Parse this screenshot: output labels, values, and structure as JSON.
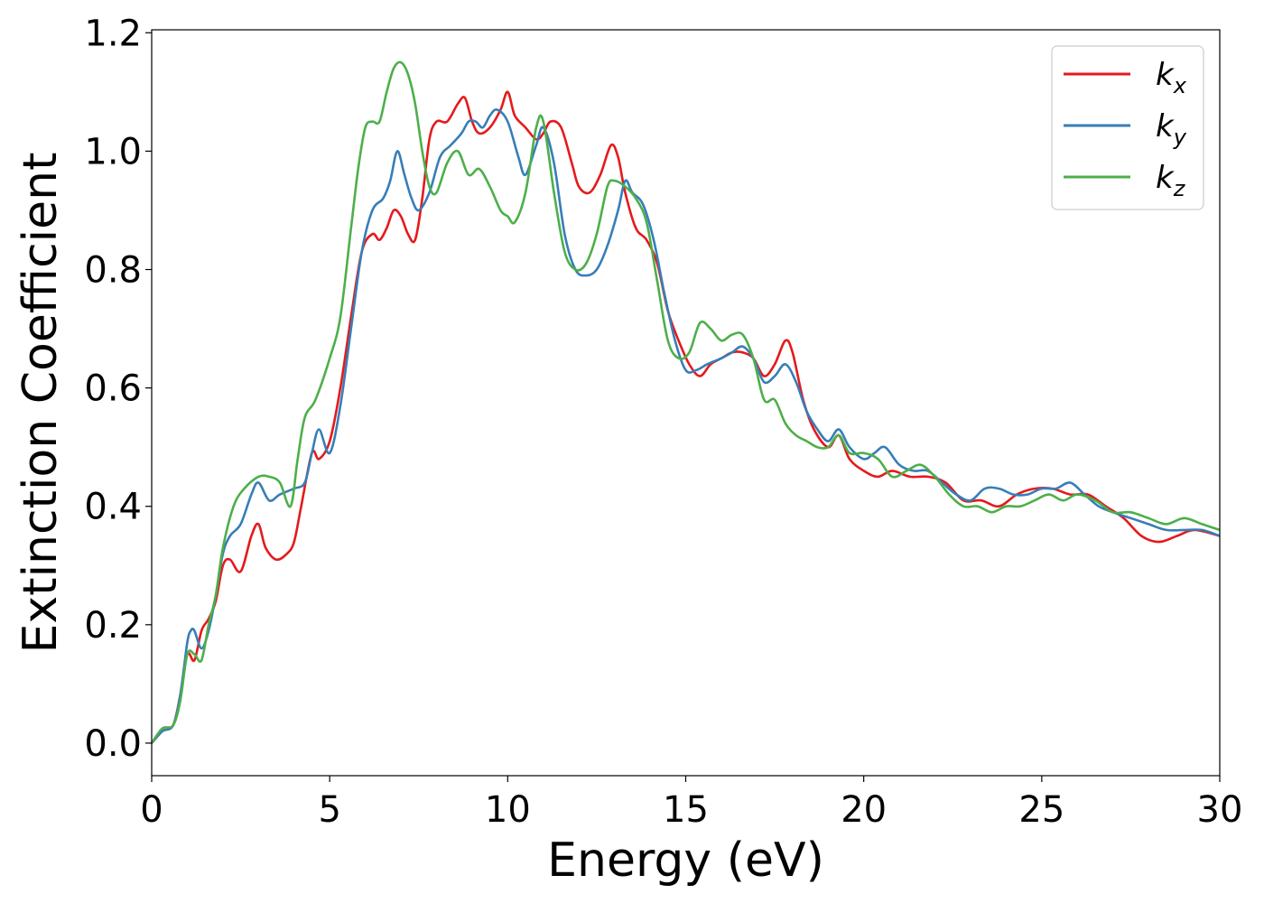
{
  "chart_data": {
    "type": "line",
    "title": "",
    "xlabel": "Energy (eV)",
    "ylabel": "Extinction Coefficient",
    "xlim": [
      0,
      30
    ],
    "ylim": [
      -0.055,
      1.205
    ],
    "xticks": [
      0,
      5,
      10,
      15,
      20,
      25,
      30
    ],
    "xtick_labels": [
      "0",
      "5",
      "10",
      "15",
      "20",
      "25",
      "30"
    ],
    "yticks": [
      0.0,
      0.2,
      0.4,
      0.6,
      0.8,
      1.0,
      1.2
    ],
    "ytick_labels": [
      "0.0",
      "0.2",
      "0.4",
      "0.6",
      "0.8",
      "1.0",
      "1.2"
    ],
    "grid": false,
    "legend_position": "top-right",
    "series": [
      {
        "name": "k",
        "subscript": "x",
        "color": "#e41a1c",
        "x": [
          0,
          0.3,
          0.6,
          0.8,
          1.0,
          1.2,
          1.4,
          1.6,
          1.8,
          2.0,
          2.2,
          2.5,
          2.8,
          3.0,
          3.2,
          3.5,
          3.8,
          4.0,
          4.2,
          4.5,
          4.7,
          5.0,
          5.3,
          5.6,
          5.9,
          6.2,
          6.4,
          6.6,
          6.8,
          7.0,
          7.2,
          7.4,
          7.6,
          7.8,
          8.0,
          8.3,
          8.6,
          8.8,
          9.0,
          9.2,
          9.5,
          9.8,
          10.0,
          10.2,
          10.5,
          10.8,
          11.0,
          11.2,
          11.5,
          11.8,
          12.0,
          12.3,
          12.6,
          12.9,
          13.1,
          13.3,
          13.6,
          13.9,
          14.2,
          14.5,
          14.8,
          15.1,
          15.4,
          15.7,
          16.0,
          16.3,
          16.6,
          16.9,
          17.2,
          17.5,
          17.8,
          18.0,
          18.3,
          18.6,
          19.0,
          19.3,
          19.6,
          20.0,
          20.4,
          20.8,
          21.3,
          21.8,
          22.3,
          22.8,
          23.3,
          23.8,
          24.3,
          24.8,
          25.3,
          25.8,
          26.3,
          26.8,
          27.3,
          27.8,
          28.3,
          28.8,
          29.3,
          30
        ],
        "values": [
          0.0,
          0.02,
          0.03,
          0.08,
          0.15,
          0.14,
          0.19,
          0.21,
          0.24,
          0.3,
          0.31,
          0.29,
          0.35,
          0.37,
          0.33,
          0.31,
          0.32,
          0.34,
          0.4,
          0.49,
          0.48,
          0.51,
          0.6,
          0.72,
          0.83,
          0.86,
          0.85,
          0.87,
          0.9,
          0.89,
          0.86,
          0.85,
          0.92,
          1.02,
          1.05,
          1.05,
          1.08,
          1.09,
          1.05,
          1.03,
          1.04,
          1.07,
          1.1,
          1.06,
          1.04,
          1.02,
          1.03,
          1.05,
          1.04,
          0.98,
          0.94,
          0.93,
          0.96,
          1.01,
          0.99,
          0.93,
          0.87,
          0.85,
          0.81,
          0.73,
          0.68,
          0.64,
          0.62,
          0.64,
          0.65,
          0.66,
          0.66,
          0.65,
          0.62,
          0.64,
          0.68,
          0.66,
          0.58,
          0.53,
          0.5,
          0.52,
          0.48,
          0.46,
          0.45,
          0.46,
          0.45,
          0.45,
          0.44,
          0.41,
          0.41,
          0.4,
          0.42,
          0.43,
          0.43,
          0.42,
          0.42,
          0.4,
          0.38,
          0.35,
          0.34,
          0.35,
          0.36,
          0.35
        ]
      },
      {
        "name": "k",
        "subscript": "y",
        "color": "#377eb8",
        "x": [
          0,
          0.3,
          0.6,
          0.8,
          1.0,
          1.1,
          1.2,
          1.4,
          1.6,
          1.8,
          2.0,
          2.2,
          2.5,
          2.8,
          3.0,
          3.3,
          3.6,
          4.0,
          4.3,
          4.5,
          4.7,
          5.0,
          5.3,
          5.6,
          5.9,
          6.2,
          6.5,
          6.7,
          6.9,
          7.1,
          7.3,
          7.5,
          7.8,
          8.1,
          8.4,
          8.7,
          8.9,
          9.1,
          9.3,
          9.5,
          9.7,
          10.0,
          10.3,
          10.5,
          10.8,
          11.0,
          11.3,
          11.6,
          11.9,
          12.2,
          12.5,
          12.8,
          13.1,
          13.3,
          13.5,
          13.8,
          14.1,
          14.4,
          14.7,
          15.0,
          15.3,
          15.6,
          16.0,
          16.3,
          16.6,
          16.9,
          17.2,
          17.5,
          17.8,
          18.1,
          18.4,
          18.7,
          19.0,
          19.3,
          19.6,
          20.0,
          20.3,
          20.6,
          21.0,
          21.4,
          21.8,
          22.2,
          22.6,
          23.0,
          23.4,
          23.8,
          24.2,
          24.6,
          25.0,
          25.4,
          25.8,
          26.2,
          26.6,
          27.0,
          27.5,
          28.0,
          28.5,
          29.0,
          29.5,
          30
        ],
        "values": [
          0.0,
          0.02,
          0.03,
          0.08,
          0.17,
          0.19,
          0.19,
          0.16,
          0.19,
          0.25,
          0.32,
          0.35,
          0.37,
          0.42,
          0.44,
          0.41,
          0.42,
          0.43,
          0.44,
          0.49,
          0.53,
          0.49,
          0.57,
          0.7,
          0.83,
          0.9,
          0.92,
          0.95,
          1.0,
          0.96,
          0.92,
          0.9,
          0.93,
          0.99,
          1.01,
          1.03,
          1.05,
          1.05,
          1.04,
          1.06,
          1.07,
          1.05,
          0.99,
          0.96,
          1.01,
          1.04,
          0.98,
          0.86,
          0.8,
          0.79,
          0.8,
          0.84,
          0.9,
          0.95,
          0.93,
          0.91,
          0.85,
          0.76,
          0.68,
          0.63,
          0.63,
          0.64,
          0.65,
          0.66,
          0.67,
          0.65,
          0.61,
          0.62,
          0.64,
          0.61,
          0.56,
          0.53,
          0.51,
          0.53,
          0.5,
          0.48,
          0.49,
          0.5,
          0.47,
          0.46,
          0.46,
          0.44,
          0.42,
          0.41,
          0.43,
          0.43,
          0.42,
          0.42,
          0.43,
          0.43,
          0.44,
          0.42,
          0.4,
          0.39,
          0.38,
          0.37,
          0.36,
          0.36,
          0.36,
          0.35
        ]
      },
      {
        "name": "k",
        "subscript": "z",
        "color": "#4daf4a",
        "x": [
          0,
          0.3,
          0.6,
          0.8,
          1.0,
          1.2,
          1.4,
          1.6,
          1.8,
          2.0,
          2.3,
          2.6,
          3.0,
          3.3,
          3.6,
          3.9,
          4.1,
          4.3,
          4.6,
          5.0,
          5.3,
          5.6,
          5.8,
          6.0,
          6.2,
          6.4,
          6.6,
          6.8,
          7.0,
          7.2,
          7.4,
          7.6,
          7.8,
          8.0,
          8.3,
          8.6,
          8.9,
          9.2,
          9.5,
          9.8,
          10.0,
          10.2,
          10.5,
          10.8,
          11.0,
          11.3,
          11.6,
          11.9,
          12.2,
          12.5,
          12.8,
          13.0,
          13.3,
          13.6,
          13.9,
          14.2,
          14.5,
          14.8,
          15.1,
          15.4,
          15.7,
          16.0,
          16.3,
          16.6,
          16.9,
          17.2,
          17.5,
          17.8,
          18.1,
          18.4,
          18.7,
          19.0,
          19.3,
          19.6,
          20.0,
          20.4,
          20.8,
          21.2,
          21.6,
          22.0,
          22.4,
          22.8,
          23.2,
          23.6,
          24.0,
          24.4,
          24.8,
          25.2,
          25.6,
          26.0,
          26.5,
          27.0,
          27.5,
          28.0,
          28.5,
          29.0,
          29.5,
          30
        ],
        "values": [
          0.0,
          0.025,
          0.03,
          0.07,
          0.15,
          0.15,
          0.14,
          0.2,
          0.25,
          0.33,
          0.4,
          0.43,
          0.45,
          0.45,
          0.44,
          0.4,
          0.48,
          0.55,
          0.58,
          0.65,
          0.72,
          0.87,
          0.97,
          1.04,
          1.05,
          1.05,
          1.1,
          1.14,
          1.15,
          1.13,
          1.08,
          1.0,
          0.94,
          0.93,
          0.98,
          1.0,
          0.96,
          0.97,
          0.94,
          0.9,
          0.89,
          0.88,
          0.93,
          1.04,
          1.05,
          0.93,
          0.83,
          0.8,
          0.81,
          0.86,
          0.94,
          0.95,
          0.94,
          0.92,
          0.88,
          0.78,
          0.68,
          0.65,
          0.66,
          0.71,
          0.7,
          0.68,
          0.69,
          0.69,
          0.65,
          0.58,
          0.58,
          0.54,
          0.52,
          0.51,
          0.5,
          0.5,
          0.52,
          0.49,
          0.49,
          0.48,
          0.45,
          0.46,
          0.47,
          0.45,
          0.42,
          0.4,
          0.4,
          0.39,
          0.4,
          0.4,
          0.41,
          0.42,
          0.41,
          0.42,
          0.41,
          0.39,
          0.39,
          0.38,
          0.37,
          0.38,
          0.37,
          0.36
        ]
      }
    ]
  }
}
